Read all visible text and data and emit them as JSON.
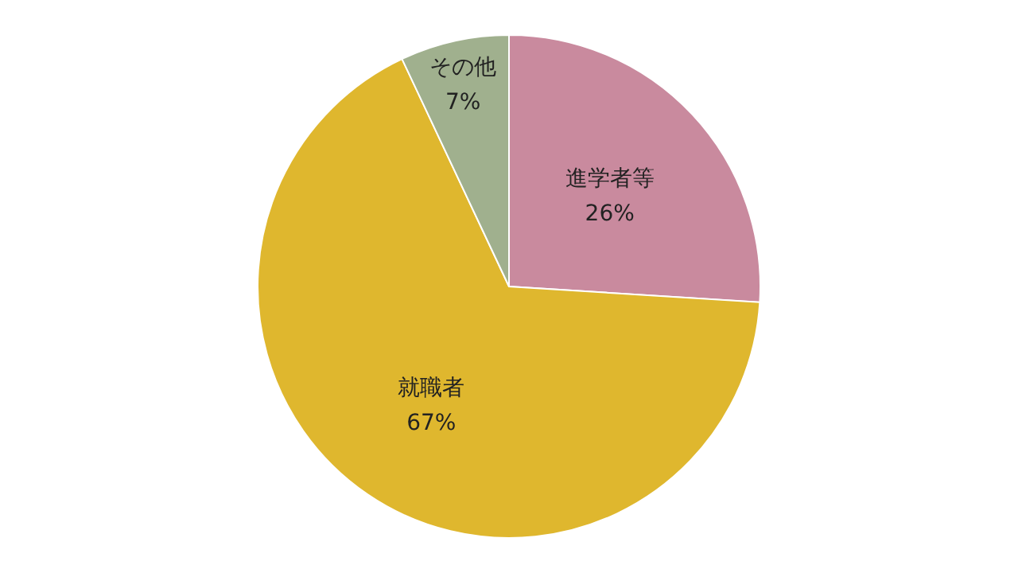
{
  "chart_data": {
    "type": "pie",
    "categories": [
      "進学者等",
      "就職者",
      "その他"
    ],
    "values": [
      26,
      67,
      7
    ],
    "colors": [
      "#c98a9e",
      "#dfb72e",
      "#a0b08e"
    ],
    "value_labels": [
      "26%",
      "67%",
      "7%"
    ]
  }
}
